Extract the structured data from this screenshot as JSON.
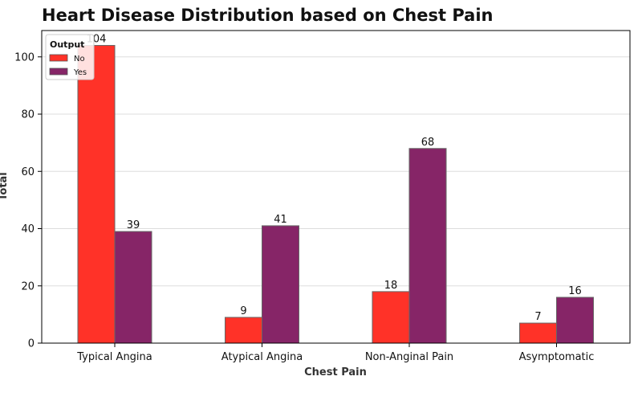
{
  "chart_data": {
    "type": "bar",
    "title": "Heart Disease Distribution based on Chest Pain",
    "xlabel": "Chest Pain",
    "ylabel": "Total",
    "categories": [
      "Typical Angina",
      "Atypical Angina",
      "Non-Anginal Pain",
      "Asymptomatic"
    ],
    "series": [
      {
        "name": "No",
        "values": [
          104,
          9,
          18,
          7
        ],
        "color": "#ff3228"
      },
      {
        "name": "Yes",
        "values": [
          39,
          41,
          68,
          16
        ],
        "color": "#862567"
      }
    ],
    "ylim": [
      0,
      109.2
    ],
    "yticks": [
      0,
      20,
      40,
      60,
      80,
      100
    ],
    "grid": "y",
    "legend": {
      "title": "Output",
      "placement": "top-left"
    }
  }
}
